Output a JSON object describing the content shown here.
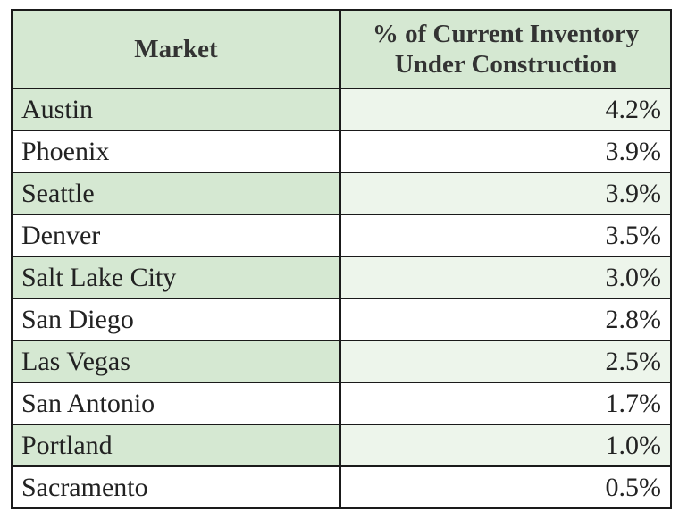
{
  "chart_data": {
    "type": "table",
    "columns": [
      "Market",
      "% of Current Inventory Under Construction"
    ],
    "header_lines": [
      "% of Current Inventory",
      "Under Construction"
    ],
    "rows": [
      {
        "market": "Austin",
        "value": "4.2%"
      },
      {
        "market": "Phoenix",
        "value": "3.9%"
      },
      {
        "market": "Seattle",
        "value": "3.9%"
      },
      {
        "market": "Denver",
        "value": "3.5%"
      },
      {
        "market": "Salt Lake City",
        "value": "3.0%"
      },
      {
        "market": "San Diego",
        "value": "2.8%"
      },
      {
        "market": "Las Vegas",
        "value": "2.5%"
      },
      {
        "market": "San Antonio",
        "value": "1.7%"
      },
      {
        "market": "Portland",
        "value": "1.0%"
      },
      {
        "market": "Sacramento",
        "value": "0.5%"
      }
    ]
  },
  "colors": {
    "header_fill": "#d5e8d2",
    "odd_row_fill": "#d5e8d2",
    "odd_row_value_fill": "#edf5eb",
    "even_row_fill": "#ffffff",
    "border": "#1a1a1a"
  }
}
